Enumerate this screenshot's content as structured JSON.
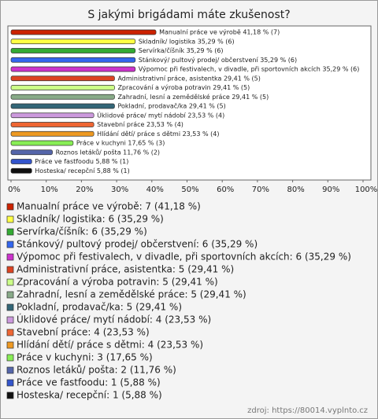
{
  "chart_data": {
    "type": "barh",
    "title": "S jakými brigádami máte zkušenost?",
    "categories": [
      "Manualní práce ve výrobě",
      "Skladník/ logistika",
      "Servírka/číšník",
      "Stánkový/ pultový prodej/ občerstvení",
      "Výpomoc při festivalech, v divadle, při sportovních akcích",
      "Administrativní práce, asistentka",
      "Zpracování a výroba potravin",
      "Zahradní, lesní a zemědělské práce",
      "Pokladní, prodavač/ka",
      "Úklidové práce/ mytí nádobí",
      "Stavební práce",
      "Hlídání dětí/ práce s dětmi",
      "Práce v kuchyni",
      "Roznos letáků/ pošta",
      "Práce ve fastfoodu",
      "Hosteska/ recepční"
    ],
    "values": [
      41.18,
      35.29,
      35.29,
      35.29,
      35.29,
      29.41,
      29.41,
      29.41,
      29.41,
      23.53,
      23.53,
      23.53,
      17.65,
      11.76,
      5.88,
      5.88
    ],
    "value_labels": [
      "Manualní práce ve výrobě 41,18 % (7)",
      "Skladník/ logistika 35,29 % (6)",
      "Servírka/číšník 35,29 % (6)",
      "Stánkový/ pultový prodej/ občerstvení 35,29 % (6)",
      "Výpomoc při festivalech, v divadle, při sportovních akcích 35,29 % (6)",
      "Administrativní práce, asistentka 29,41 % (5)",
      "Zpracování a výroba potravin 29,41 % (5)",
      "Zahradní, lesní a zemědělské práce 29,41 % (5)",
      "Pokladní, prodavač/ka 29,41 % (5)",
      "Úklidové práce/ mytí nádobí 23,53 % (4)",
      "Stavební práce 23,53 % (4)",
      "Hlídání dětí/ práce s dětmi 23,53 % (4)",
      "Práce v kuchyni 17,65 % (3)",
      "Roznos letáků/ pošta 11,76 % (2)",
      "Práce ve fastfoodu 5,88 % (1)",
      "Hosteska/ recepční 5,88 % (1)"
    ],
    "legend_labels": [
      "Manualní práce ve výrobě: 7 (41,18 %)",
      "Skladník/ logistika: 6 (35,29 %)",
      "Servírka/číšník: 6 (35,29 %)",
      "Stánkový/ pultový prodej/ občerstvení: 6 (35,29 %)",
      "Výpomoc při festivalech, v divadle, při sportovních akcích: 6 (35,29 %)",
      "Administrativní práce, asistentka: 5 (29,41 %)",
      "Zpracování a výroba potravin: 5 (29,41 %)",
      "Zahradní, lesní a zemědělské práce: 5 (29,41 %)",
      "Pokladní, prodavač/ka: 5 (29,41 %)",
      "Úklidové práce/ mytí nádobí: 4 (23,53 %)",
      "Stavební práce: 4 (23,53 %)",
      "Hlídání dětí/ práce s dětmi: 4 (23,53 %)",
      "Práce v kuchyni: 3 (17,65 %)",
      "Roznos letáků/ pošta: 2 (11,76 %)",
      "Práce ve fastfoodu: 1 (5,88 %)",
      "Hosteska/ recepční: 1 (5,88 %)"
    ],
    "colors": [
      "#cc2200",
      "#ffff44",
      "#33aa33",
      "#3366ee",
      "#cc33cc",
      "#dd4422",
      "#ccff88",
      "#88aa88",
      "#336677",
      "#cc99dd",
      "#ee6633",
      "#ee9922",
      "#88ee55",
      "#5566aa",
      "#3355cc",
      "#111111"
    ],
    "xlim": [
      0,
      100
    ],
    "xticks": [
      {
        "value": 0,
        "label": "0%"
      },
      {
        "value": 10,
        "label": "10%"
      },
      {
        "value": 20,
        "label": "20%"
      },
      {
        "value": 30,
        "label": "30%"
      },
      {
        "value": 40,
        "label": "40%"
      },
      {
        "value": 50,
        "label": "50%"
      },
      {
        "value": 60,
        "label": "60%"
      },
      {
        "value": 70,
        "label": "70%"
      },
      {
        "value": 80,
        "label": "80%"
      },
      {
        "value": 90,
        "label": "90%"
      },
      {
        "value": 100,
        "label": "100%"
      }
    ],
    "source": "zdroj: https://80014.vyplnto.cz"
  }
}
